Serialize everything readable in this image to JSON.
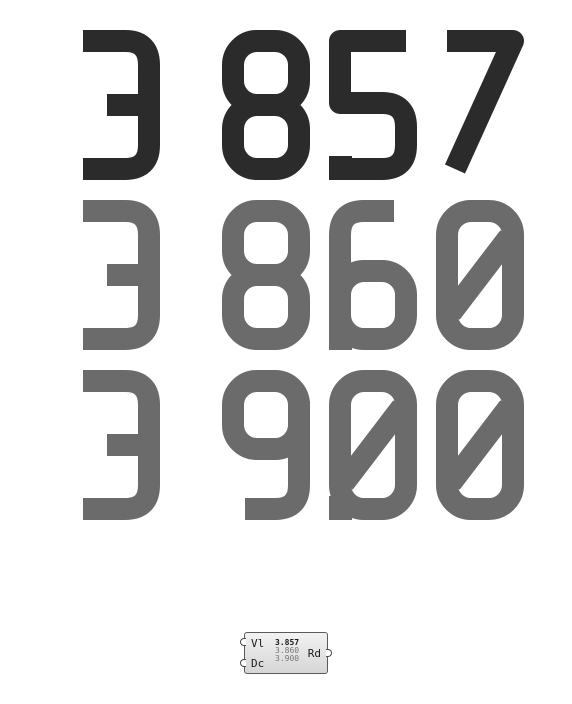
{
  "display": {
    "values": [
      "3.857",
      "3.860",
      "3.900"
    ],
    "colors": [
      "#2b2b2b",
      "#6b6b6b",
      "#6b6b6b"
    ]
  },
  "component": {
    "inputs": [
      "Vl",
      "Dc"
    ],
    "output": "Rd",
    "preview": [
      "3.857",
      "3.860",
      "3.900"
    ]
  }
}
